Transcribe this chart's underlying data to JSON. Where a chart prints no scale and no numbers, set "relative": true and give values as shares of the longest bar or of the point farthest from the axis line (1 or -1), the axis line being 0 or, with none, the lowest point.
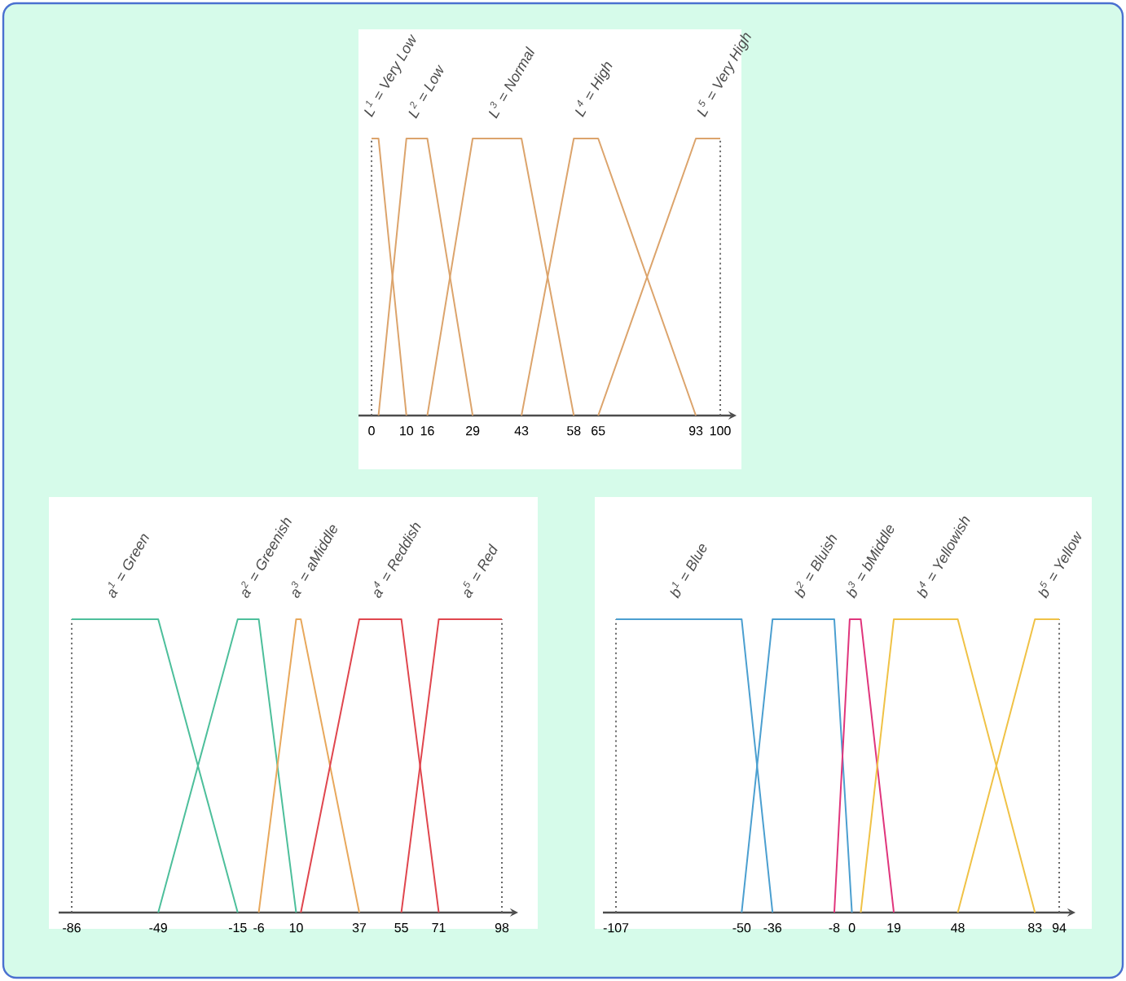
{
  "chart_data": [
    {
      "type": "line",
      "relative": true,
      "xlim": [
        0,
        100
      ],
      "xticks": [
        0,
        10,
        16,
        29,
        43,
        58,
        65,
        93,
        100
      ],
      "series": [
        {
          "name": "L$^{1}$ = Very Low",
          "color": "#dca46c",
          "x": [
            0,
            2,
            10
          ],
          "values": [
            1,
            1,
            0
          ]
        },
        {
          "name": "L$^{2}$ = Low",
          "color": "#dca46c",
          "x": [
            2,
            10,
            16,
            29
          ],
          "values": [
            0,
            1,
            1,
            0
          ]
        },
        {
          "name": "L$^{3}$ = Normal",
          "color": "#dca46c",
          "x": [
            16,
            29,
            43,
            58
          ],
          "values": [
            0,
            1,
            1,
            0
          ]
        },
        {
          "name": "L$^{4}$ = High",
          "color": "#dca46c",
          "x": [
            43,
            58,
            65,
            93
          ],
          "values": [
            0,
            1,
            1,
            0
          ]
        },
        {
          "name": "L$^{5}$ = Very High",
          "color": "#dca46c",
          "x": [
            65,
            93,
            100
          ],
          "values": [
            0,
            1,
            1
          ]
        }
      ]
    },
    {
      "type": "line",
      "relative": true,
      "xlim": [
        -86,
        98
      ],
      "xticks": [
        -86,
        -49,
        -15,
        -6,
        10,
        37,
        55,
        71,
        98
      ],
      "series": [
        {
          "name": "a$^{1}$ = Green",
          "color": "#4dbf9b",
          "x": [
            -86,
            -49,
            -15
          ],
          "values": [
            1,
            1,
            0
          ]
        },
        {
          "name": "a$^{2}$ = Greenish",
          "color": "#4dbf9b",
          "x": [
            -49,
            -15,
            -6,
            10
          ],
          "values": [
            0,
            1,
            1,
            0
          ]
        },
        {
          "name": "a$^{3}$ = aMiddle",
          "color": "#e8a85c",
          "x": [
            -6,
            10,
            12,
            37
          ],
          "values": [
            0,
            1,
            1,
            0
          ]
        },
        {
          "name": "a$^{4}$ = Reddish",
          "color": "#e0464e",
          "x": [
            12,
            37,
            55,
            71
          ],
          "values": [
            0,
            1,
            1,
            0
          ]
        },
        {
          "name": "a$^{5}$ = Red",
          "color": "#e0464e",
          "x": [
            55,
            71,
            98
          ],
          "values": [
            0,
            1,
            1
          ]
        }
      ]
    },
    {
      "type": "line",
      "relative": true,
      "xlim": [
        -107,
        94
      ],
      "xticks": [
        -107,
        -50,
        -36,
        -8,
        0,
        19,
        48,
        83,
        94
      ],
      "series": [
        {
          "name": "b$^{1}$ = Blue",
          "color": "#4b9fd0",
          "x": [
            -107,
            -50,
            -36
          ],
          "values": [
            1,
            1,
            0
          ]
        },
        {
          "name": "b$^{2}$ = Bluish",
          "color": "#4b9fd0",
          "x": [
            -50,
            -36,
            -8,
            0
          ],
          "values": [
            0,
            1,
            1,
            0
          ]
        },
        {
          "name": "b$^{3}$ = bMiddle",
          "color": "#e0357c",
          "x": [
            -8,
            -1,
            4,
            19
          ],
          "values": [
            0,
            1,
            1,
            0
          ]
        },
        {
          "name": "b$^{4}$ = Yellowish",
          "color": "#f0c246",
          "x": [
            4,
            19,
            48,
            83
          ],
          "values": [
            0,
            1,
            1,
            0
          ]
        },
        {
          "name": "b$^{5}$ = Yellow",
          "color": "#f0c246",
          "x": [
            48,
            83,
            94
          ],
          "values": [
            0,
            1,
            1
          ]
        }
      ]
    }
  ]
}
